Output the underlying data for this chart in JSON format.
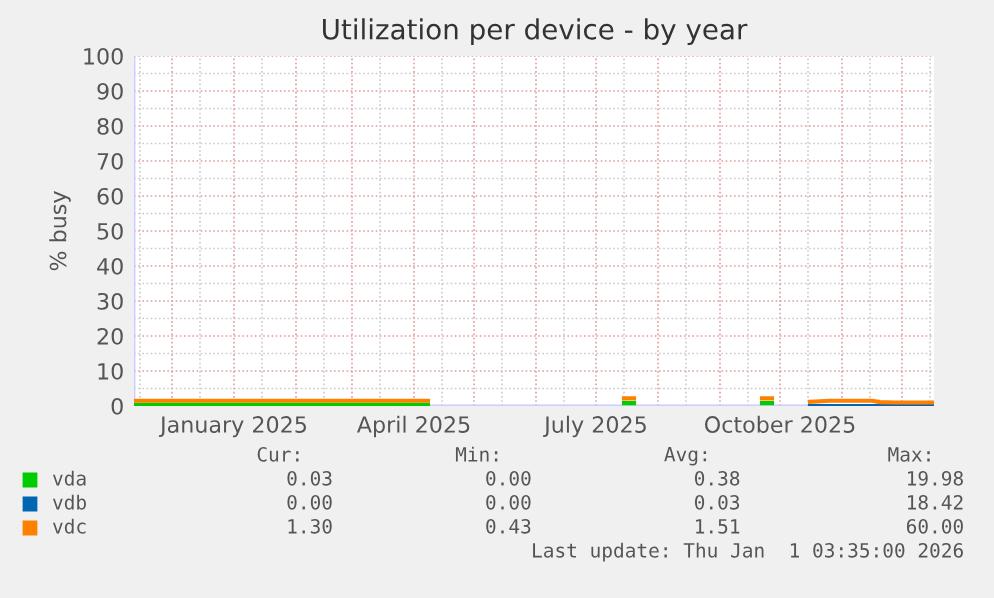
{
  "chart_data": {
    "type": "line",
    "title": "Utilization per device - by year",
    "ylabel": "% busy",
    "xlim": [
      "2024-11-12",
      "2025-12-17"
    ],
    "xticks": [
      {
        "value": "2025-01-01",
        "label": "January 2025"
      },
      {
        "value": "2025-04-01",
        "label": "April 2025"
      },
      {
        "value": "2025-07-01",
        "label": "July 2025"
      },
      {
        "value": "2025-10-01",
        "label": "October 2025"
      }
    ],
    "ylim": [
      0,
      100
    ],
    "yticks": [
      0,
      10,
      20,
      30,
      40,
      50,
      60,
      70,
      80,
      90,
      100
    ],
    "grid": true,
    "legend": "bottom",
    "series": [
      {
        "name": "vda",
        "color": "#00cc00",
        "x": [
          "2024-11-12",
          "2024-12-05",
          "2024-12-31",
          "2025-01-26",
          "2025-02-23",
          "2025-03-21",
          "2025-04-08",
          "2025-04-09",
          "2025-07-15",
          "2025-07-20",
          "2025-07-21",
          "2025-09-22",
          "2025-09-27"
        ],
        "values": [
          0.3,
          0.3,
          0.3,
          0.3,
          0.3,
          0.3,
          0.3,
          null,
          0.8,
          0.8,
          null,
          0.8,
          0.8
        ]
      },
      {
        "name": "vdb",
        "color": "#0066b3",
        "x": [
          "2025-10-16",
          "2025-11-16",
          "2025-12-17"
        ],
        "values": [
          0,
          0,
          0
        ]
      },
      {
        "name": "vdc",
        "color": "#ff8000",
        "x": [
          "2024-11-12",
          "2024-12-05",
          "2024-12-31",
          "2025-01-26",
          "2025-02-23",
          "2025-03-21",
          "2025-04-08",
          "2025-04-09",
          "2025-07-15",
          "2025-07-20",
          "2025-07-21",
          "2025-09-22",
          "2025-09-27",
          "2025-09-28",
          "2025-10-16",
          "2025-10-26",
          "2025-11-16",
          "2025-11-20",
          "2025-11-27",
          "2025-12-17"
        ],
        "values": [
          1.5,
          1.5,
          1.5,
          1.5,
          1.5,
          1.5,
          1.5,
          null,
          2.2,
          2.2,
          null,
          2.2,
          2.2,
          null,
          1.2,
          1.5,
          1.5,
          1.1,
          1.0,
          1.0
        ]
      }
    ],
    "annotations": [
      "Cur:",
      "Min:",
      "Avg:",
      "Max:",
      "0.03",
      "0.00",
      "0.38",
      "19.98",
      "0.00",
      "0.00",
      "0.03",
      "18.42",
      "1.30",
      "0.43",
      "1.51",
      "60.00",
      "Last update: Thu Jan  1 03:35:00 2026"
    ]
  }
}
